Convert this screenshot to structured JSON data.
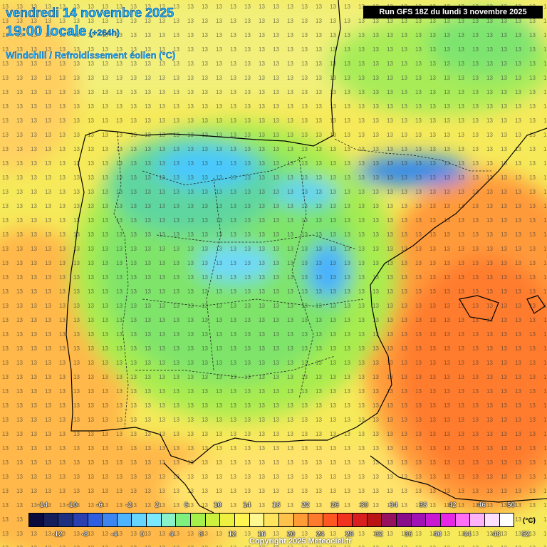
{
  "header": {
    "date": "vendredi 14 novembre 2025",
    "time": "19:00 locale",
    "lead": "(+264h)",
    "variable": "Windchill / Refroidissement éolien (°C)",
    "run": "Run GFS 18Z du lundi 3 novembre 2025"
  },
  "legend": {
    "top_ticks": [
      "-14",
      "-10",
      "-6",
      "-2",
      "2",
      "6",
      "10",
      "14",
      "18",
      "22",
      "26",
      "30",
      "34",
      "38",
      "42",
      "46",
      "50"
    ],
    "bottom_ticks": [
      "-12",
      "-8",
      "-4",
      "0",
      "4",
      "8",
      "12",
      "16",
      "20",
      "24",
      "28",
      "32",
      "36",
      "40",
      "44",
      "48",
      "52"
    ],
    "unit": "(°C)",
    "colors": [
      "#0a0a3c",
      "#141e5a",
      "#1e2f80",
      "#2a40b0",
      "#2f5fe0",
      "#3d86f2",
      "#4fb4ff",
      "#66d5ff",
      "#7ae8ff",
      "#8af2c8",
      "#7ff080",
      "#a6f04a",
      "#cdf23e",
      "#eef040",
      "#fff450",
      "#fff890",
      "#ffe45c",
      "#ffc24a",
      "#ff9c35",
      "#ff7a2a",
      "#ff5722",
      "#f0321e",
      "#d81e1e",
      "#bb1414",
      "#961060",
      "#8a0b8a",
      "#a012b4",
      "#c81ad0",
      "#e628e6",
      "#ff6ef5",
      "#ffb2f8",
      "#ffe0fc",
      "#ffffff"
    ]
  },
  "copyright": "Copyright 2025 Meteociel.fr"
}
